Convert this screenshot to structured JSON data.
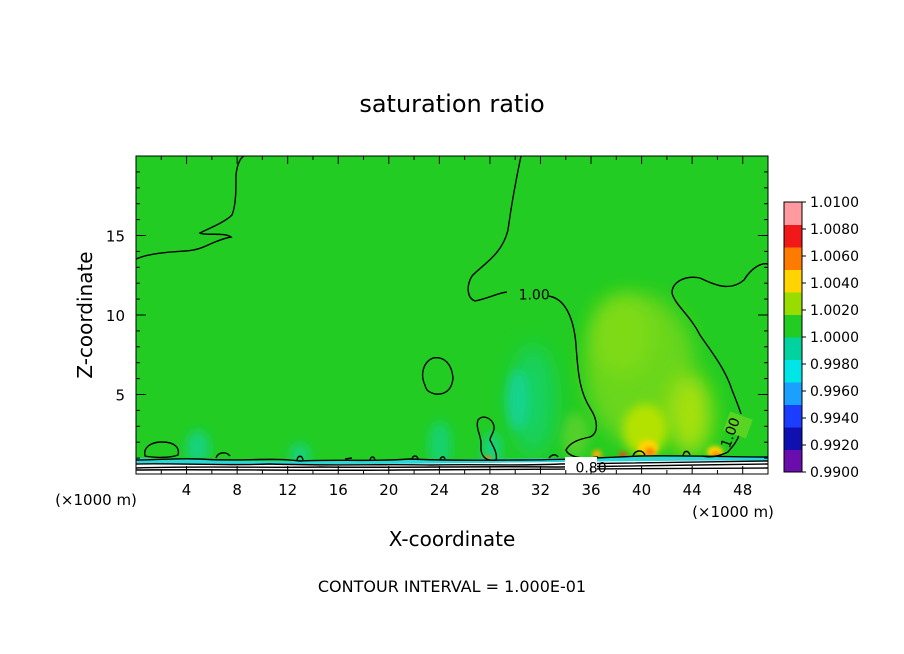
{
  "chart_data": {
    "type": "heatmap",
    "title": "saturation ratio",
    "xlabel": "X-coordinate",
    "ylabel": "Z-coordinate",
    "x_unit_left": "(×1000 m)",
    "x_unit_right": "(×1000 m)",
    "xlim": [
      0,
      50
    ],
    "ylim": [
      0,
      20
    ],
    "x_ticks": [
      4,
      8,
      12,
      16,
      20,
      24,
      28,
      32,
      36,
      40,
      44,
      48
    ],
    "y_ticks": [
      5,
      10,
      15
    ],
    "colorbar": {
      "levels": [
        "0.9900",
        "0.9920",
        "0.9940",
        "0.9960",
        "0.9980",
        "1.0000",
        "1.0020",
        "1.0040",
        "1.0060",
        "1.0080",
        "1.0100"
      ],
      "colors": [
        "#6a0dad",
        "#1010b0",
        "#1c3cff",
        "#1aa0ff",
        "#00e6e6",
        "#00d2a0",
        "#22cc22",
        "#99dd00",
        "#ffd400",
        "#ff7a00",
        "#f01818",
        "#ff9aa0"
      ]
    },
    "background_value": 1.0,
    "contour_labels": [
      {
        "text": "1.00",
        "x": 31.5,
        "y": 11.3
      },
      {
        "text": "1.00",
        "x": 47.0,
        "y": 2.6
      },
      {
        "text": "0.80",
        "x": 36.0,
        "y": 0.4
      }
    ],
    "annotation": "CONTOUR INTERVAL = 1.000E-01"
  }
}
